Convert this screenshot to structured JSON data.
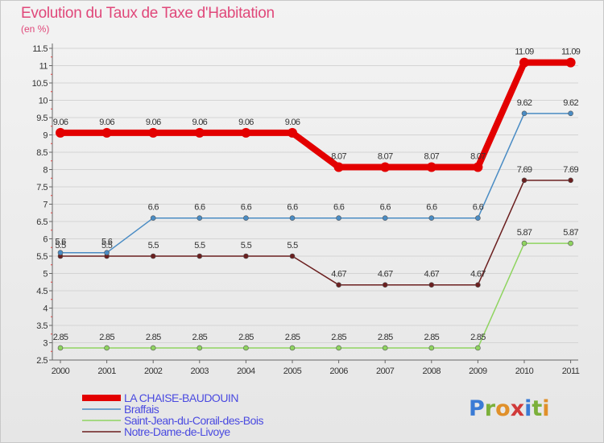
{
  "chart_data": {
    "type": "line",
    "title": "Evolution du Taux de Taxe d'Habitation",
    "subtitle": "(en %)",
    "x": [
      "2000",
      "2001",
      "2002",
      "2003",
      "2004",
      "2005",
      "2006",
      "2007",
      "2008",
      "2009",
      "2010",
      "2011"
    ],
    "ylim": [
      2.5,
      11.5
    ],
    "yticks": [
      "2.5",
      "3",
      "3.5",
      "4",
      "4.5",
      "5",
      "5.5",
      "6",
      "6.5",
      "7",
      "7.5",
      "8",
      "8.5",
      "9",
      "9.5",
      "10",
      "10.5",
      "11",
      "11.5"
    ],
    "grid": "horizontal",
    "legend": "bottom-left",
    "series": [
      {
        "name": "LA CHAISE-BAUDOUIN",
        "color": "#e30000",
        "values": [
          9.06,
          9.06,
          9.06,
          9.06,
          9.06,
          9.06,
          8.07,
          8.07,
          8.07,
          8.07,
          11.09,
          11.09
        ],
        "labels": [
          "9.06",
          "9.06",
          "9.06",
          "9.06",
          "9.06",
          "9.06",
          "8.07",
          "8.07",
          "8.07",
          "8.07",
          "11.09",
          "11.09"
        ]
      },
      {
        "name": "Braffais",
        "color": "#4a8cc4",
        "values": [
          5.6,
          5.6,
          6.6,
          6.6,
          6.6,
          6.6,
          6.6,
          6.6,
          6.6,
          6.6,
          9.62,
          9.62
        ],
        "labels": [
          "5.6",
          "5.6",
          "6.6",
          "6.6",
          "6.6",
          "6.6",
          "6.6",
          "6.6",
          "6.6",
          "6.6",
          "9.62",
          "9.62"
        ]
      },
      {
        "name": "Saint-Jean-du-Corail-des-Bois",
        "color": "#8fd460",
        "values": [
          2.85,
          2.85,
          2.85,
          2.85,
          2.85,
          2.85,
          2.85,
          2.85,
          2.85,
          2.85,
          5.87,
          5.87
        ],
        "labels": [
          "2.85",
          "2.85",
          "2.85",
          "2.85",
          "2.85",
          "2.85",
          "2.85",
          "2.85",
          "2.85",
          "2.85",
          "5.87",
          "5.87"
        ]
      },
      {
        "name": "Notre-Dame-de-Livoye",
        "color": "#6b1f1f",
        "values": [
          5.5,
          5.5,
          5.5,
          5.5,
          5.5,
          5.5,
          4.67,
          4.67,
          4.67,
          4.67,
          7.69,
          7.69
        ],
        "labels": [
          "5.5",
          "5.5",
          "5.5",
          "5.5",
          "5.5",
          "5.5",
          "4.67",
          "4.67",
          "4.67",
          "4.67",
          "7.69",
          "7.69"
        ]
      }
    ],
    "legend_text_color": "#4a4ae0"
  },
  "watermark": "Proxiti"
}
